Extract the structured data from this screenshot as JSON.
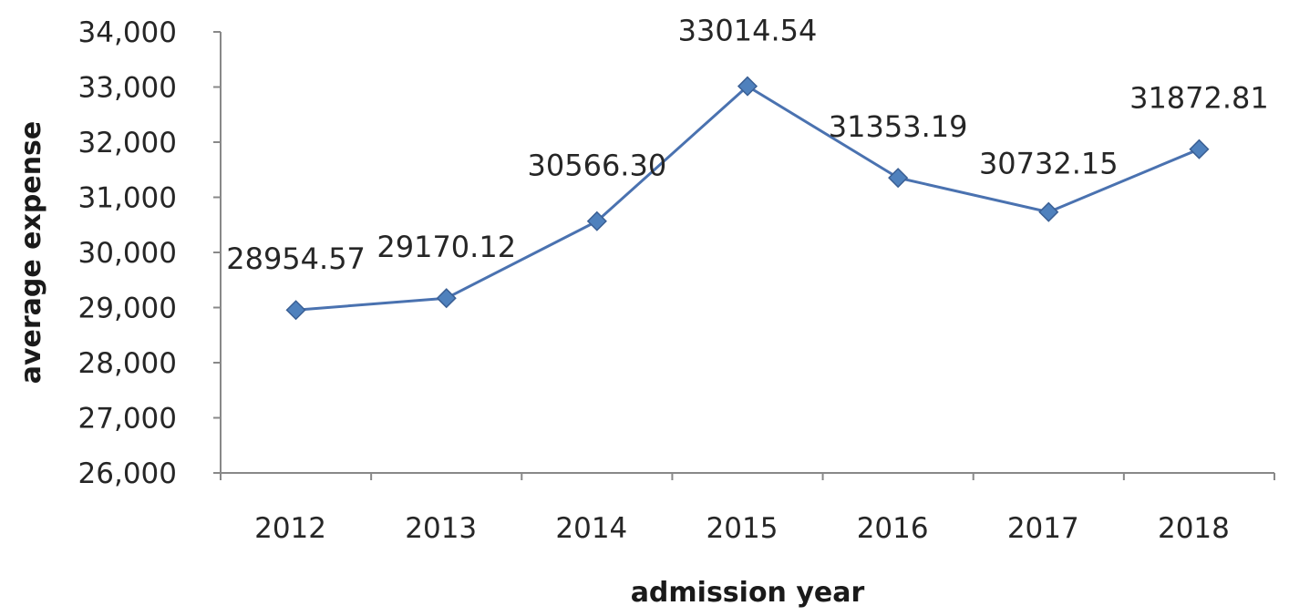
{
  "chart_data": {
    "type": "line",
    "title": "",
    "xlabel": "admission year",
    "ylabel": "average expense",
    "categories": [
      "2012",
      "2013",
      "2014",
      "2015",
      "2016",
      "2017",
      "2018"
    ],
    "series": [
      {
        "values": [
          28954.57,
          29170.12,
          30566.3,
          33014.54,
          31353.19,
          30732.15,
          31872.81
        ],
        "data_labels": [
          "28954.57",
          "29170.12",
          "30566.30",
          "33014.54",
          "31353.19",
          "30732.15",
          "31872.81"
        ]
      }
    ],
    "ylim": [
      26000,
      34000
    ],
    "yticks": [
      26000,
      27000,
      28000,
      29000,
      30000,
      31000,
      32000,
      33000,
      34000
    ],
    "ytick_labels": [
      "26,000",
      "27,000",
      "28,000",
      "29,000",
      "30,000",
      "31,000",
      "32,000",
      "33,000",
      "34,000"
    ],
    "grid": false,
    "legend": "none",
    "marker": "diamond",
    "colors": {
      "line": "#4a72b0",
      "marker": "#4f81bd",
      "marker_edge": "#3a5f94",
      "axis": "#888888",
      "text": "#262626"
    }
  }
}
